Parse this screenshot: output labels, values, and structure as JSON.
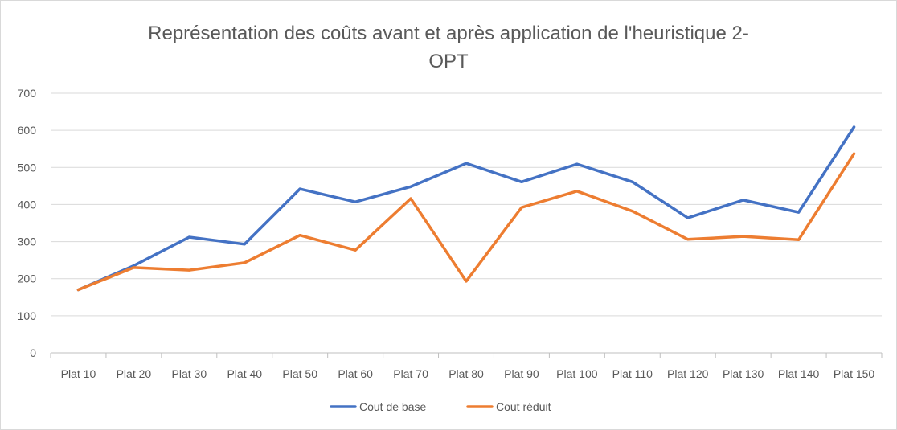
{
  "chart_data": {
    "type": "line",
    "title_lines": [
      "Représentation des coûts avant et après application de l'heuristique 2-",
      "OPT"
    ],
    "categories": [
      "Plat 10",
      "Plat 20",
      "Plat 30",
      "Plat 40",
      "Plat 50",
      "Plat 60",
      "Plat 70",
      "Plat 80",
      "Plat 90",
      "Plat 100",
      "Plat 110",
      "Plat 120",
      "Plat 130",
      "Plat 140",
      "Plat 150"
    ],
    "series": [
      {
        "name": "Cout de base",
        "color": "#4472c4",
        "values": [
          170,
          235,
          312,
          293,
          442,
          407,
          448,
          511,
          461,
          509,
          461,
          364,
          412,
          379,
          609
        ]
      },
      {
        "name": "Cout réduit",
        "color": "#ed7d31",
        "values": [
          170,
          230,
          223,
          243,
          317,
          277,
          416,
          193,
          392,
          436,
          382,
          306,
          314,
          305,
          537
        ]
      }
    ],
    "ylim": [
      0,
      700
    ],
    "yticks": [
      0,
      100,
      200,
      300,
      400,
      500,
      600,
      700
    ],
    "grid": true,
    "legend_position": "bottom"
  }
}
